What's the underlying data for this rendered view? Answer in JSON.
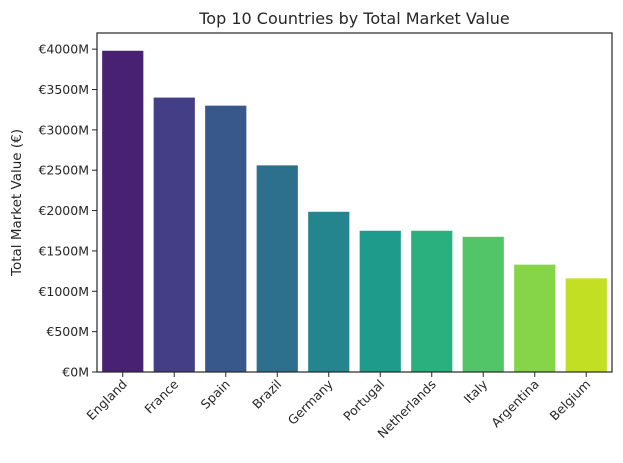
{
  "chart_data": {
    "type": "bar",
    "title": "Top 10 Countries by Total Market Value",
    "xlabel": "",
    "ylabel": "Total Market Value (€)",
    "categories": [
      "England",
      "France",
      "Spain",
      "Brazil",
      "Germany",
      "Portugal",
      "Netherlands",
      "Italy",
      "Argentina",
      "Belgium"
    ],
    "values": [
      3980,
      3400,
      3300,
      2560,
      1985,
      1750,
      1750,
      1675,
      1330,
      1160
    ],
    "ylim": [
      0,
      4200
    ],
    "yticks": [
      0,
      500,
      1000,
      1500,
      2000,
      2500,
      3000,
      3500,
      4000
    ],
    "ytick_labels": [
      "€0M",
      "€500M",
      "€1000M",
      "€1500M",
      "€2000M",
      "€2500M",
      "€3000M",
      "€3500M",
      "€4000M"
    ],
    "colors": [
      "#482173",
      "#433e85",
      "#38588c",
      "#2d708e",
      "#25858e",
      "#1e9b8a",
      "#2ab07f",
      "#52c569",
      "#86d549",
      "#c2df23"
    ],
    "grid": false,
    "legend": "none"
  }
}
